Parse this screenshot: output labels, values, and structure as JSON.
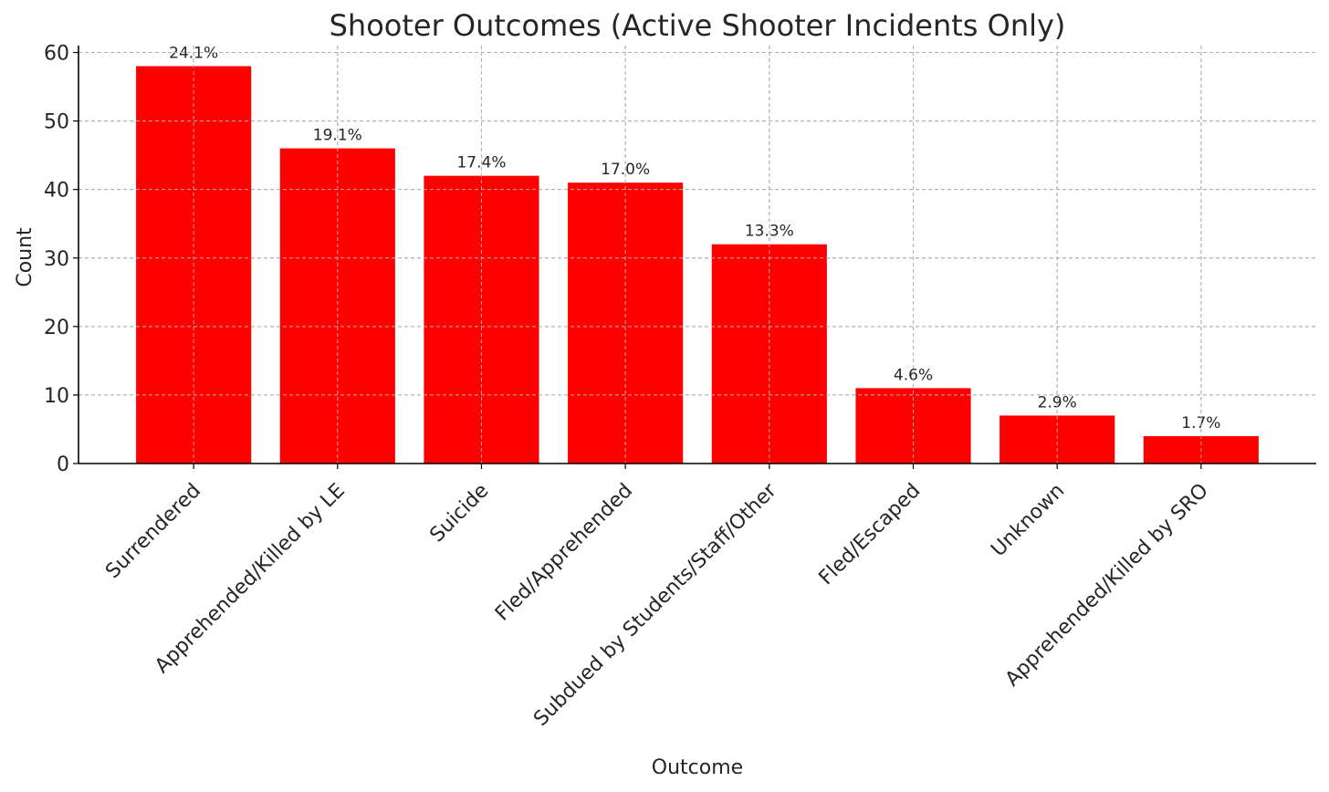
{
  "chart_data": {
    "type": "bar",
    "title": "Shooter Outcomes (Active Shooter Incidents Only)",
    "xlabel": "Outcome",
    "ylabel": "Count",
    "categories": [
      "Surrendered",
      "Apprehended/Killed by LE",
      "Suicide",
      "Fled/Apprehended",
      "Subdued by Students/Staff/Other",
      "Fled/Escaped",
      "Unknown",
      "Apprehended/Killed by SRO"
    ],
    "values": [
      58,
      46,
      42,
      41,
      32,
      11,
      7,
      4
    ],
    "data_labels": [
      "24.1%",
      "19.1%",
      "17.4%",
      "17.0%",
      "13.3%",
      "4.6%",
      "2.9%",
      "1.7%"
    ],
    "ylim": [
      0,
      61
    ],
    "yticks": [
      0,
      10,
      20,
      30,
      40,
      50,
      60
    ],
    "grid": true,
    "bar_color": "#ff0000",
    "grid_color": "#b0b0b0"
  }
}
